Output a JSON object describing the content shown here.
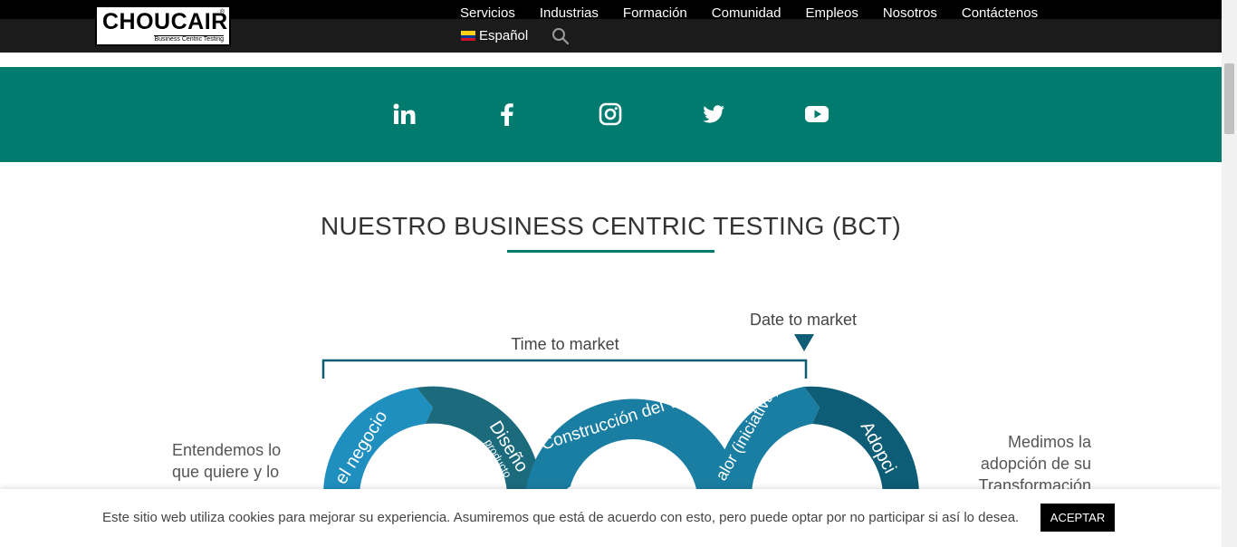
{
  "header": {
    "logo_text": "CHOUCAIR",
    "logo_reg": "®",
    "logo_tagline": "Business Centric Testing",
    "nav": [
      "Servicios",
      "Industrias",
      "Formación",
      "Comunidad",
      "Empleos",
      "Nosotros",
      "Contáctenos"
    ],
    "language": "Español",
    "colors": {
      "topbar": "#000000",
      "bar": "#1b1b1b"
    }
  },
  "social": {
    "color": "#007b6e",
    "icons": [
      "linkedin-icon",
      "facebook-icon",
      "instagram-icon",
      "twitter-icon",
      "youtube-icon"
    ]
  },
  "section": {
    "title": "NUESTRO BUSINESS CENTRIC TESTING (BCT)"
  },
  "diagram": {
    "date_to_market": "Date to market",
    "time_to_market": "Time to market",
    "arc1": "el negocio",
    "arc2": "Diseño",
    "arc2b": "producto",
    "arc3": "Construcción del valor",
    "arc4": "alor (iniciativa)",
    "arc5": "Adopci",
    "left_text": [
      "Entendemos lo",
      "que quiere y lo"
    ],
    "right_text": [
      "Medimos la",
      "adopción de su",
      "Transformación"
    ],
    "colors": {
      "dark": "#0e5d76",
      "mid": "#1a7ea3",
      "light": "#1f8fbf",
      "teal": "#1b6b7d"
    }
  },
  "cookie": {
    "text": "Este sitio web utiliza cookies para mejorar su experiencia. Asumiremos que está de acuerdo con esto, pero puede optar por no participar si así lo desea.",
    "accept": "ACEPTAR"
  }
}
